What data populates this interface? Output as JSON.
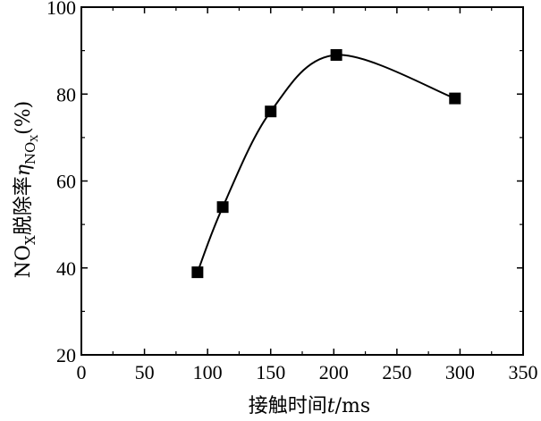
{
  "chart_data": {
    "type": "line",
    "marker": "square",
    "xlabel": "接触时间",
    "xvar": "t",
    "xunit": "/ms",
    "ylabel_prefix": "NO",
    "ylabel_sub": "X",
    "ylabel_main": "脱除率",
    "ylabel_symbol": "η",
    "ylabel_symbol_sub_a": "NO",
    "ylabel_symbol_sub_b": "X",
    "ylabel_unit": "(%)",
    "xlim": [
      0,
      350
    ],
    "ylim": [
      20,
      100
    ],
    "xticks": [
      0,
      50,
      100,
      150,
      200,
      250,
      300,
      350
    ],
    "yticks": [
      20,
      40,
      60,
      80,
      100
    ],
    "grid": false,
    "series": [
      {
        "x": [
          92,
          112,
          150,
          202,
          296
        ],
        "y": [
          39,
          54,
          76,
          89,
          79
        ]
      }
    ]
  }
}
